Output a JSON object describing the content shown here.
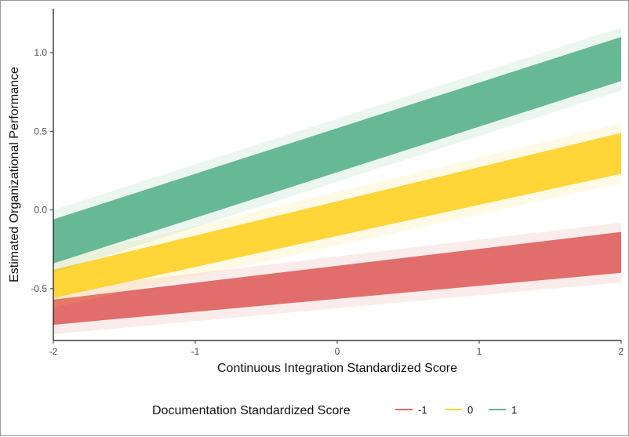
{
  "chart_data": {
    "type": "line",
    "xlabel": "Continuous Integration Standardized Score",
    "ylabel": "Estimated Organizational Performance",
    "xlim": [
      -2,
      2
    ],
    "ylim": [
      -0.83,
      1.28
    ],
    "x_ticks": [
      "-2",
      "-1",
      "0",
      "1",
      "2"
    ],
    "y_ticks": [
      "-0.5",
      "0.0",
      "0.5",
      "1.0"
    ],
    "legend": {
      "title": "Documentation Standardized Score",
      "position": "bottom",
      "entries": [
        "-1",
        "0",
        "1"
      ]
    },
    "series": [
      {
        "name": "-1",
        "color": "#e06666",
        "x": [
          -2,
          2
        ],
        "y_mid": [
          -0.65,
          -0.27
        ],
        "y_lower": [
          -0.73,
          -0.4
        ],
        "y_upper": [
          -0.57,
          -0.14
        ]
      },
      {
        "name": "0",
        "color": "#ffd32e",
        "x": [
          -2,
          2
        ],
        "y_mid": [
          -0.47,
          0.36
        ],
        "y_lower": [
          -0.56,
          0.23
        ],
        "y_upper": [
          -0.38,
          0.49
        ]
      },
      {
        "name": "1",
        "color": "#5fb58e",
        "x": [
          -2,
          2
        ],
        "y_mid": [
          -0.2,
          0.96
        ],
        "y_lower": [
          -0.34,
          0.82
        ],
        "y_upper": [
          -0.06,
          1.1
        ]
      }
    ],
    "grid": false
  }
}
